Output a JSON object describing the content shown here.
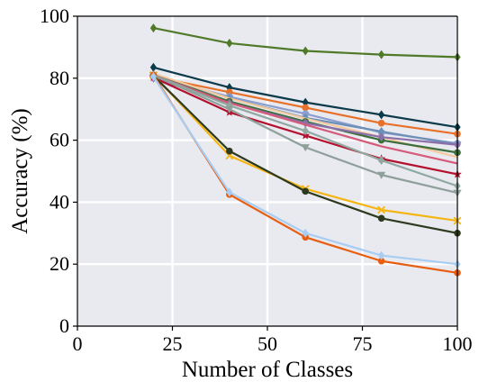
{
  "chart_data": {
    "type": "line",
    "xlabel": "Number of Classes",
    "ylabel": "Accuracy (%)",
    "xlim": [
      0,
      100
    ],
    "ylim": [
      0,
      100
    ],
    "xticks": [
      0,
      25,
      50,
      75,
      100
    ],
    "yticks": [
      0,
      20,
      40,
      60,
      80,
      100
    ],
    "xtick_labels": [
      "0",
      "25",
      "50",
      "75",
      "100"
    ],
    "ytick_labels": [
      "0",
      "20",
      "40",
      "60",
      "80",
      "100"
    ],
    "grid": true,
    "background": "#e9e9f0",
    "x": [
      20,
      40,
      60,
      80,
      100
    ],
    "series": [
      {
        "color": "#4f7a28",
        "marker": "diamond",
        "values": [
          96.2,
          91.3,
          88.8,
          87.6,
          86.8
        ]
      },
      {
        "color": "#0b3a4a",
        "marker": "diamond",
        "values": [
          83.5,
          77.0,
          72.2,
          68.2,
          64.2
        ]
      },
      {
        "color": "#e8712a",
        "marker": "circle",
        "values": [
          80.5,
          75.5,
          70.5,
          65.5,
          62.0
        ]
      },
      {
        "color": "#8a9ed0",
        "marker": "pentagon",
        "values": [
          80.5,
          74.0,
          68.5,
          62.5,
          59.0
        ]
      },
      {
        "color": "#6c8fb5",
        "marker": "diamond",
        "values": [
          80.8,
          73.6,
          67.2,
          62.8,
          58.6
        ]
      },
      {
        "color": "#f3c9a0",
        "marker": "none",
        "values": [
          81.5,
          73.5,
          67.0,
          61.0,
          54.5
        ]
      },
      {
        "color": "#3b6e3b",
        "marker": "circle",
        "values": [
          81.0,
          72.5,
          66.0,
          60.0,
          56.0
        ]
      },
      {
        "color": "#8c6fa8",
        "marker": "diamond",
        "values": [
          80.0,
          72.0,
          65.5,
          61.0,
          58.5
        ]
      },
      {
        "color": "#d65a7a",
        "marker": "none",
        "values": [
          81.0,
          72.0,
          65.0,
          58.0,
          52.5
        ]
      },
      {
        "color": "#b3112e",
        "marker": "star",
        "values": [
          80.2,
          69.0,
          61.5,
          54.0,
          49.0
        ]
      },
      {
        "color": "#8fa8a0",
        "marker": "diamond",
        "values": [
          81.0,
          71.2,
          63.0,
          53.5,
          45.2
        ]
      },
      {
        "color": "#8f9f9a",
        "marker": "triangle-down",
        "values": [
          81.0,
          70.0,
          57.7,
          48.8,
          43.0
        ]
      },
      {
        "color": "#f5b513",
        "marker": "x",
        "values": [
          81.0,
          55.0,
          44.3,
          37.5,
          34.0
        ]
      },
      {
        "color": "#2e3a1f",
        "marker": "circle",
        "values": [
          80.8,
          56.5,
          43.5,
          34.8,
          30.0
        ]
      },
      {
        "color": "#e85e10",
        "marker": "circle",
        "values": [
          81.0,
          42.5,
          28.7,
          21.0,
          17.2
        ]
      },
      {
        "color": "#a8cdf2",
        "marker": "diamond",
        "values": [
          80.5,
          43.2,
          30.0,
          22.8,
          20.0
        ]
      }
    ]
  }
}
